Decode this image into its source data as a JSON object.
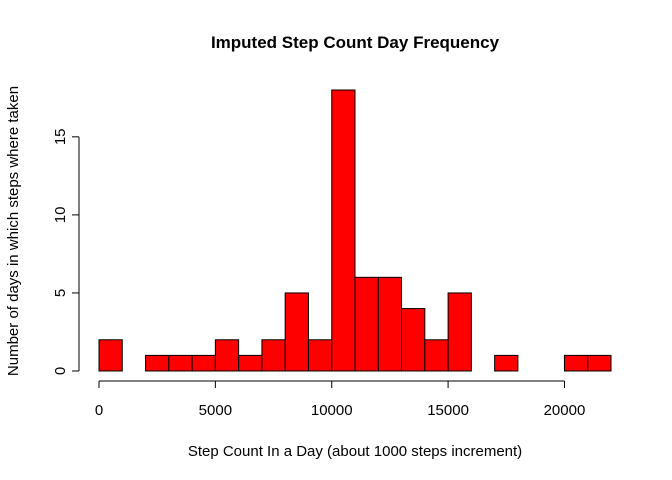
{
  "chart_data": {
    "type": "bar",
    "title": "Imputed Step Count Day Frequency",
    "xlabel": "Step Count In a Day (about 1000 steps increment)",
    "ylabel": "Number of days in which steps where taken",
    "bin_edges": [
      0,
      1000,
      2000,
      3000,
      4000,
      5000,
      6000,
      7000,
      8000,
      9000,
      10000,
      11000,
      12000,
      13000,
      14000,
      15000,
      16000,
      17000,
      18000,
      19000,
      20000,
      21000,
      22000
    ],
    "values": [
      2,
      0,
      1,
      1,
      1,
      2,
      1,
      2,
      5,
      2,
      18,
      6,
      6,
      4,
      2,
      5,
      0,
      1,
      0,
      0,
      1,
      1
    ],
    "xticks": [
      0,
      5000,
      10000,
      15000,
      20000
    ],
    "yticks": [
      0,
      5,
      10,
      15
    ],
    "xlim": [
      0,
      22000
    ],
    "ylim": [
      0,
      18
    ],
    "grid": false,
    "bar_color": "#ff0000",
    "bar_edge_color": "#000000"
  }
}
